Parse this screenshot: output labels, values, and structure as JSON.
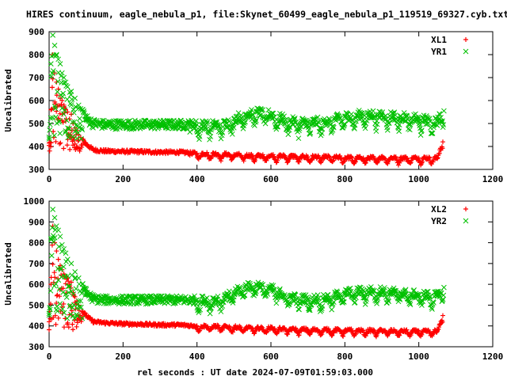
{
  "title": "HIRES continuum, eagle_nebula_p1, file:Skynet_60499_eagle_nebula_p1_119519_69327.cyb.txt",
  "chart_data": [
    {
      "type": "scatter",
      "ylabel": "Uncalibrated",
      "xlabel": "",
      "xlim": [
        0,
        1200
      ],
      "ylim": [
        300,
        900
      ],
      "xticks": [
        0,
        200,
        400,
        600,
        800,
        1000,
        1200
      ],
      "yticks": [
        300,
        400,
        500,
        600,
        700,
        800,
        900
      ],
      "legend_position": "top-right",
      "series": [
        {
          "name": "XL1",
          "color": "#ff0000",
          "marker": "plus",
          "x": [
            0,
            5,
            10,
            15,
            20,
            25,
            30,
            35,
            40,
            45,
            50,
            55,
            60,
            65,
            70,
            75,
            80,
            90,
            100,
            120,
            150,
            200,
            250,
            300,
            350,
            400,
            450,
            500,
            550,
            600,
            650,
            700,
            750,
            800,
            850,
            900,
            950,
            1000,
            1050,
            1065
          ],
          "y": [
            415,
            560,
            800,
            720,
            680,
            650,
            610,
            600,
            580,
            560,
            550,
            520,
            540,
            500,
            480,
            470,
            450,
            430,
            410,
            385,
            380,
            378,
            377,
            375,
            375,
            370,
            368,
            365,
            360,
            360,
            358,
            355,
            355,
            352,
            350,
            352,
            350,
            350,
            350,
            420
          ]
        },
        {
          "name": "YR1",
          "color": "#00c000",
          "marker": "cross",
          "x": [
            0,
            5,
            10,
            15,
            20,
            25,
            30,
            35,
            40,
            45,
            50,
            60,
            70,
            80,
            90,
            100,
            120,
            150,
            200,
            250,
            300,
            350,
            400,
            450,
            480,
            500,
            530,
            560,
            600,
            650,
            700,
            750,
            800,
            850,
            900,
            950,
            1000,
            1050,
            1068
          ],
          "y": [
            440,
            760,
            885,
            840,
            800,
            780,
            760,
            720,
            700,
            680,
            660,
            640,
            610,
            580,
            560,
            520,
            500,
            495,
            495,
            495,
            495,
            495,
            495,
            495,
            500,
            520,
            540,
            550,
            540,
            510,
            505,
            510,
            530,
            540,
            540,
            530,
            520,
            510,
            555
          ]
        }
      ]
    },
    {
      "type": "scatter",
      "ylabel": "Uncalibrated",
      "xlabel": "rel seconds : UT date 2024-07-09T01:59:03.000",
      "xlim": [
        0,
        1200
      ],
      "ylim": [
        300,
        1000
      ],
      "xticks": [
        0,
        200,
        400,
        600,
        800,
        1000,
        1200
      ],
      "yticks": [
        300,
        400,
        500,
        600,
        700,
        800,
        900,
        1000
      ],
      "legend_position": "top-right",
      "series": [
        {
          "name": "XL2",
          "color": "#ff0000",
          "marker": "plus",
          "x": [
            0,
            5,
            10,
            15,
            20,
            25,
            30,
            35,
            40,
            45,
            50,
            55,
            60,
            65,
            70,
            75,
            80,
            90,
            100,
            120,
            150,
            200,
            250,
            300,
            350,
            400,
            450,
            500,
            550,
            600,
            650,
            700,
            750,
            800,
            850,
            900,
            950,
            1000,
            1050,
            1065
          ],
          "y": [
            420,
            600,
            880,
            800,
            760,
            720,
            690,
            670,
            650,
            640,
            630,
            600,
            610,
            560,
            540,
            520,
            500,
            470,
            450,
            420,
            415,
            410,
            408,
            405,
            405,
            400,
            398,
            395,
            390,
            390,
            385,
            383,
            382,
            380,
            378,
            378,
            376,
            375,
            375,
            450
          ]
        },
        {
          "name": "YR2",
          "color": "#00c000",
          "marker": "cross",
          "x": [
            0,
            5,
            10,
            15,
            20,
            25,
            30,
            35,
            40,
            45,
            50,
            60,
            70,
            80,
            90,
            100,
            120,
            150,
            200,
            250,
            300,
            350,
            400,
            450,
            480,
            500,
            530,
            560,
            600,
            650,
            700,
            750,
            800,
            850,
            900,
            950,
            1000,
            1050,
            1068
          ],
          "y": [
            460,
            820,
            960,
            920,
            880,
            860,
            830,
            790,
            770,
            750,
            720,
            700,
            660,
            630,
            600,
            560,
            530,
            525,
            525,
            525,
            525,
            525,
            525,
            525,
            540,
            560,
            590,
            600,
            580,
            540,
            530,
            535,
            560,
            570,
            570,
            560,
            550,
            545,
            585
          ]
        }
      ]
    }
  ]
}
